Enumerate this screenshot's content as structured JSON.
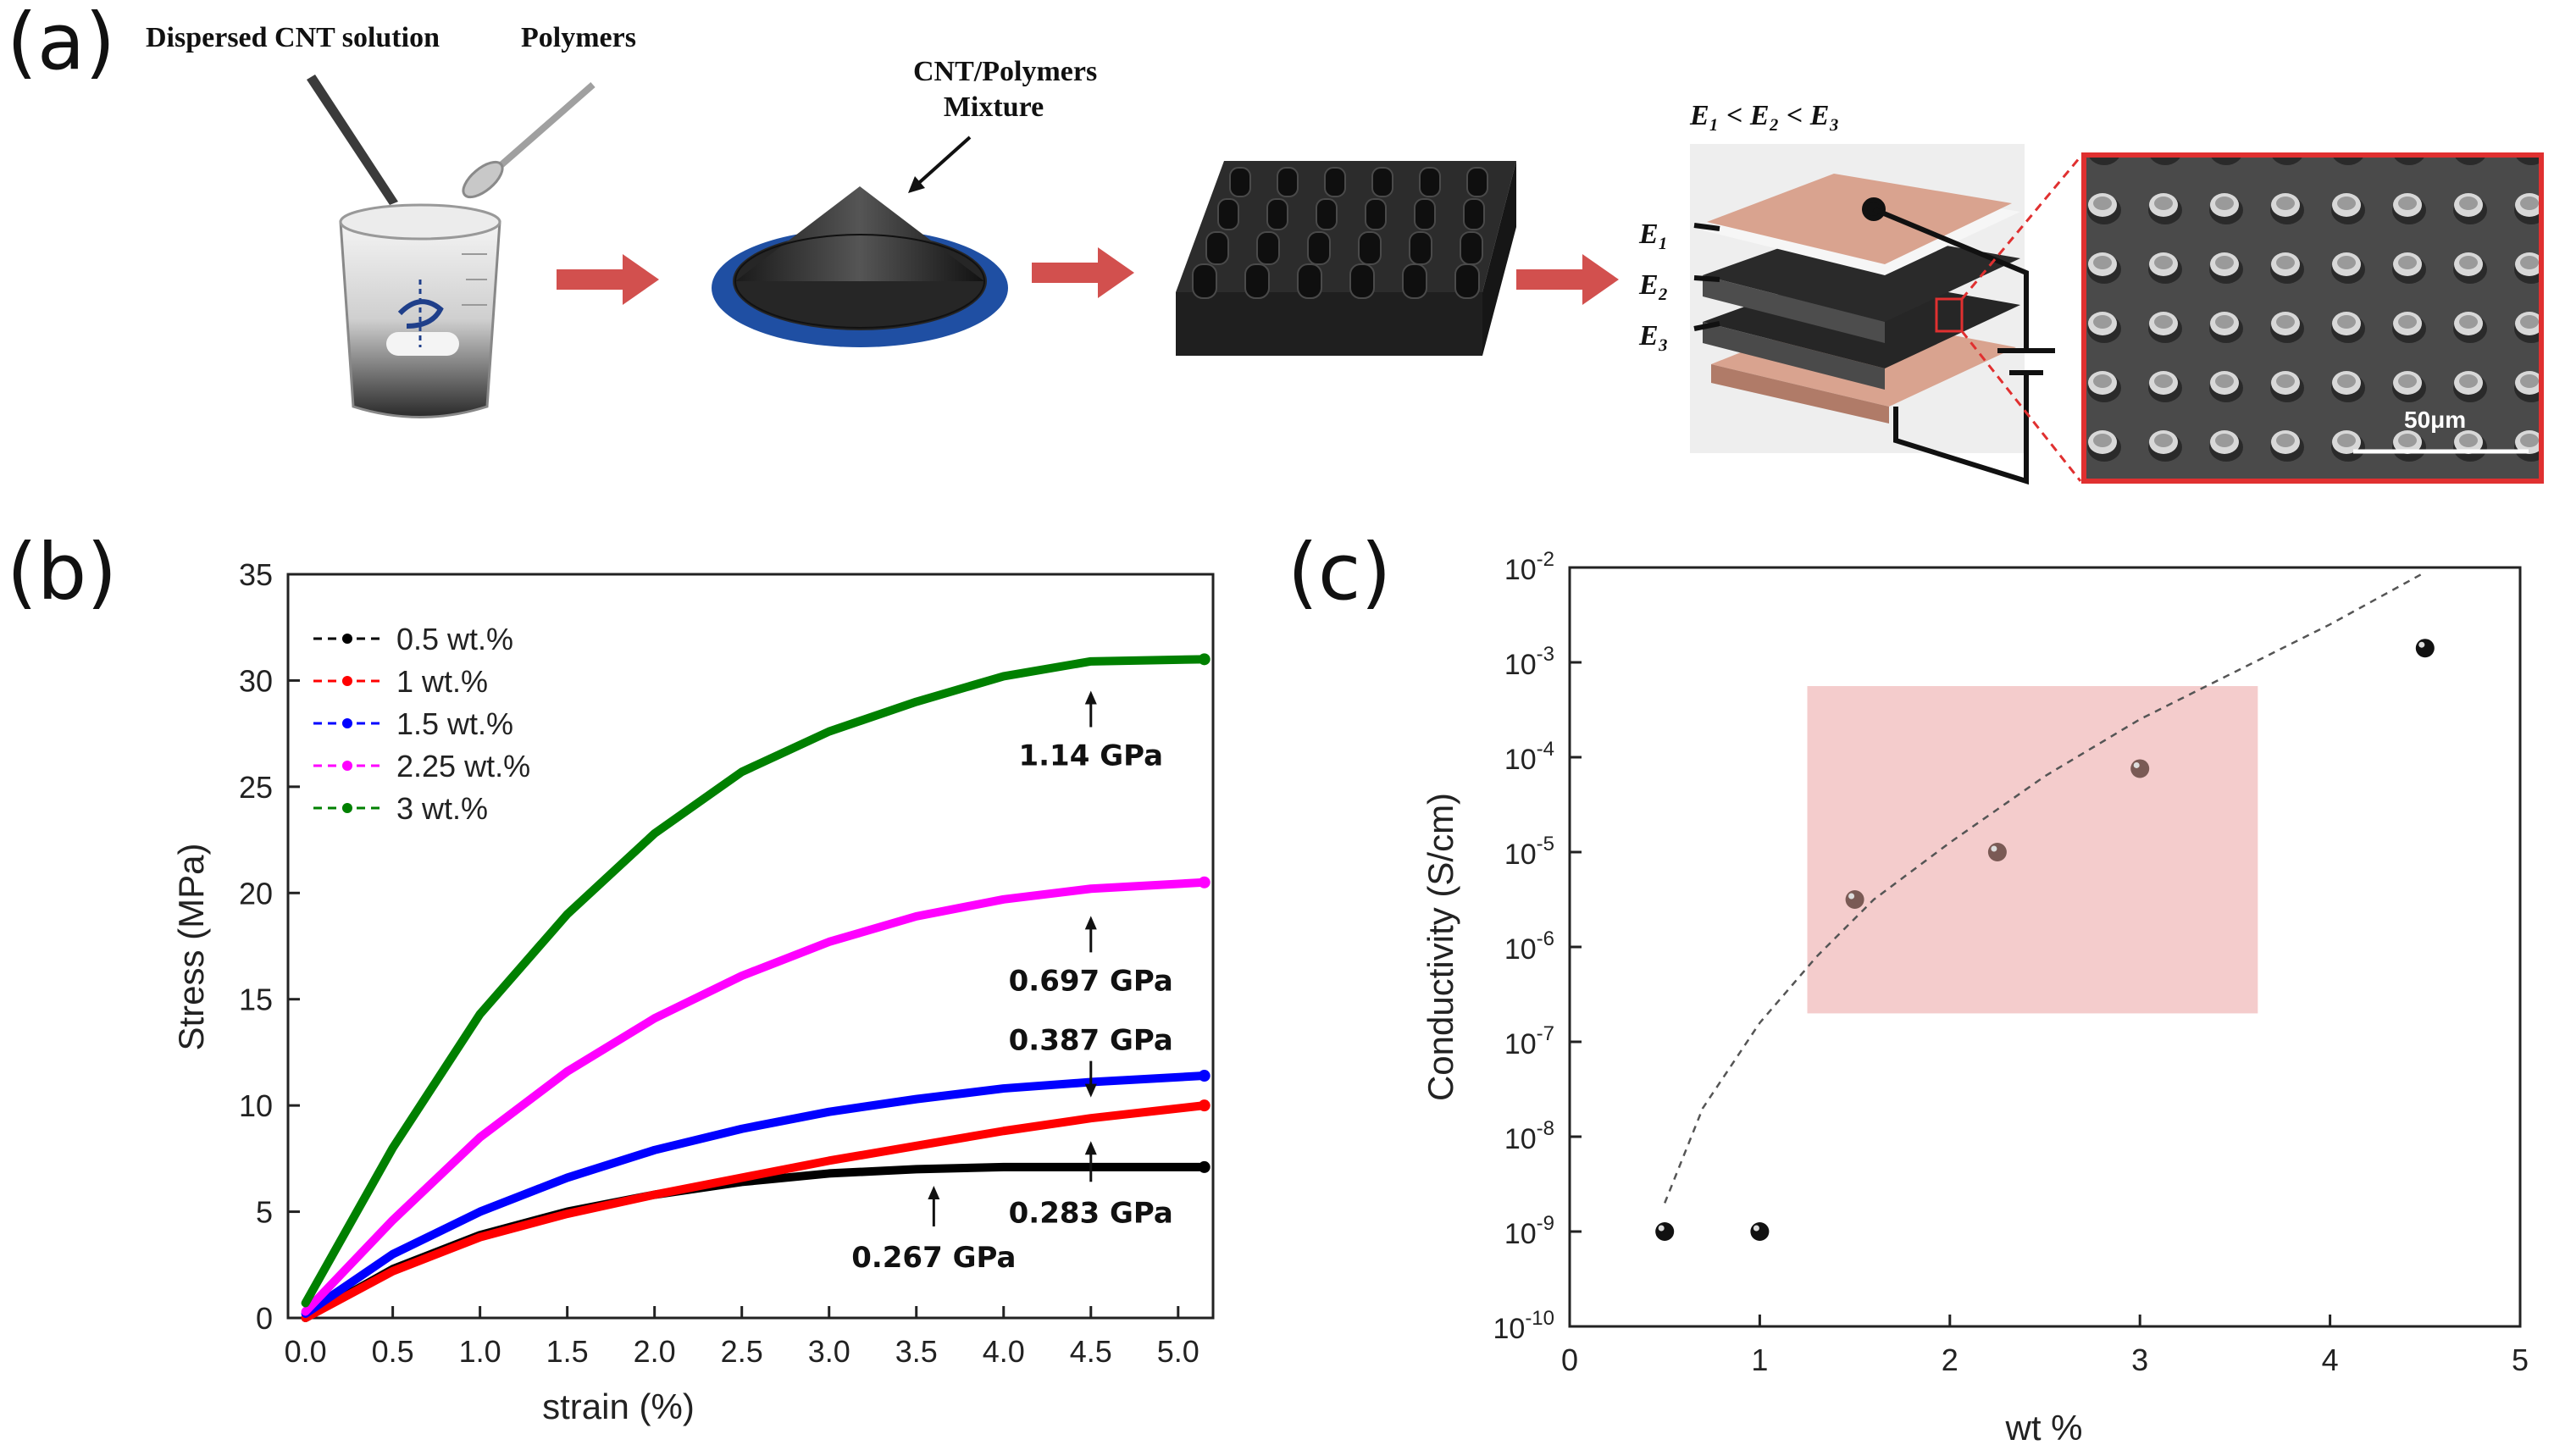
{
  "panel_labels": {
    "a": "(a)",
    "b": "(b)",
    "c": "(c)"
  },
  "schematic": {
    "dispersed_label": "Dispersed CNT solution",
    "polymers_label": "Polymers",
    "mixture_label_line1": "CNT/Polymers",
    "mixture_label_line2": "Mixture",
    "modulus_relation": "E₁ < E₂ < E₃",
    "layer_labels": [
      "E₁",
      "E₂",
      "E₃"
    ],
    "scale_bar": "50μm"
  },
  "colors": {
    "arrow": "#d2504e",
    "dish_blue": "#1f4fa3",
    "pink_box": "#f4cccc",
    "sem_border": "#e03030",
    "pad": "#d9a38f"
  },
  "chart_data": [
    {
      "id": "b",
      "type": "line",
      "xlabel": "strain (%)",
      "ylabel": "Stress (MPa)",
      "xlim": [
        -0.1,
        5.2
      ],
      "ylim": [
        0,
        35
      ],
      "xticks": [
        "0.0",
        "0.5",
        "1.0",
        "1.5",
        "2.0",
        "2.5",
        "3.0",
        "3.5",
        "4.0",
        "4.5",
        "5.0"
      ],
      "yticks": [
        "0",
        "5",
        "10",
        "15",
        "20",
        "25",
        "30",
        "35"
      ],
      "legend_position": "top-left",
      "series": [
        {
          "name": "0.5 wt.%",
          "color": "#000000",
          "x": [
            0,
            0.5,
            1,
            1.5,
            2,
            2.5,
            3,
            3.5,
            4,
            4.5,
            5.15
          ],
          "y": [
            0,
            2.3,
            3.9,
            5.0,
            5.8,
            6.4,
            6.8,
            7.0,
            7.1,
            7.1,
            7.1
          ]
        },
        {
          "name": "1 wt.%",
          "color": "#ff0000",
          "x": [
            0,
            0.5,
            1,
            1.5,
            2,
            2.5,
            3,
            3.5,
            4,
            4.5,
            5.15
          ],
          "y": [
            0,
            2.2,
            3.8,
            4.9,
            5.8,
            6.6,
            7.4,
            8.1,
            8.8,
            9.4,
            10.0
          ]
        },
        {
          "name": "1.5 wt.%",
          "color": "#0000ff",
          "x": [
            0,
            0.5,
            1,
            1.5,
            2,
            2.5,
            3,
            3.5,
            4,
            4.5,
            5.15
          ],
          "y": [
            0.2,
            3.0,
            5.0,
            6.6,
            7.9,
            8.9,
            9.7,
            10.3,
            10.8,
            11.1,
            11.4
          ]
        },
        {
          "name": "2.25 wt.%",
          "color": "#ff00ff",
          "x": [
            0,
            0.5,
            1,
            1.5,
            2,
            2.5,
            3,
            3.5,
            4,
            4.5,
            5.15
          ],
          "y": [
            0.3,
            4.6,
            8.5,
            11.6,
            14.1,
            16.1,
            17.7,
            18.9,
            19.7,
            20.2,
            20.5
          ]
        },
        {
          "name": "3 wt.%",
          "color": "#008000",
          "x": [
            0,
            0.5,
            1,
            1.5,
            2,
            2.5,
            3,
            3.5,
            4,
            4.5,
            5.15
          ],
          "y": [
            0.7,
            8.0,
            14.3,
            19.0,
            22.8,
            25.7,
            27.6,
            29.0,
            30.2,
            30.9,
            31.0
          ]
        }
      ],
      "annotations": [
        {
          "text": "1.14 GPa",
          "x": 4.5,
          "y": 29.6
        },
        {
          "text": "0.697 GPa",
          "x": 4.5,
          "y": 19.0
        },
        {
          "text": "0.387 GPa",
          "x": 4.5,
          "y": 10.3
        },
        {
          "text": "0.267 GPa",
          "x": 3.6,
          "y": 6.3
        },
        {
          "text": "0.283 GPa",
          "x": 4.5,
          "y": 8.4
        }
      ]
    },
    {
      "id": "c",
      "type": "scatter",
      "xlabel": "wt %",
      "ylabel": "Conductivity (S/cm)",
      "xlim": [
        0,
        5
      ],
      "ylim_log10": [
        -10,
        -2
      ],
      "xticks": [
        "0",
        "1",
        "2",
        "3",
        "4",
        "5"
      ],
      "ytick_mantissa": "10",
      "ytick_exponents": [
        "-10",
        "-9",
        "-8",
        "-7",
        "-6",
        "-5",
        "-4",
        "-3",
        "-2"
      ],
      "points": [
        {
          "x": 0.5,
          "log10_y": -9.0
        },
        {
          "x": 1.0,
          "log10_y": -9.0
        },
        {
          "x": 1.5,
          "log10_y": -5.5
        },
        {
          "x": 2.25,
          "log10_y": -5.0
        },
        {
          "x": 3.0,
          "log10_y": -4.12
        },
        {
          "x": 4.5,
          "log10_y": -2.85
        }
      ],
      "fit_curve": {
        "x": [
          0.5,
          0.7,
          1.0,
          1.3,
          1.6,
          2.0,
          2.5,
          3.0,
          3.5,
          4.0,
          4.5
        ],
        "log10_y": [
          -8.7,
          -7.7,
          -6.8,
          -6.1,
          -5.5,
          -4.9,
          -4.2,
          -3.6,
          -3.1,
          -2.6,
          -2.05
        ]
      },
      "highlight_box": {
        "x": [
          1.25,
          3.62
        ],
        "log10_y": [
          -6.7,
          -3.25
        ]
      }
    }
  ]
}
